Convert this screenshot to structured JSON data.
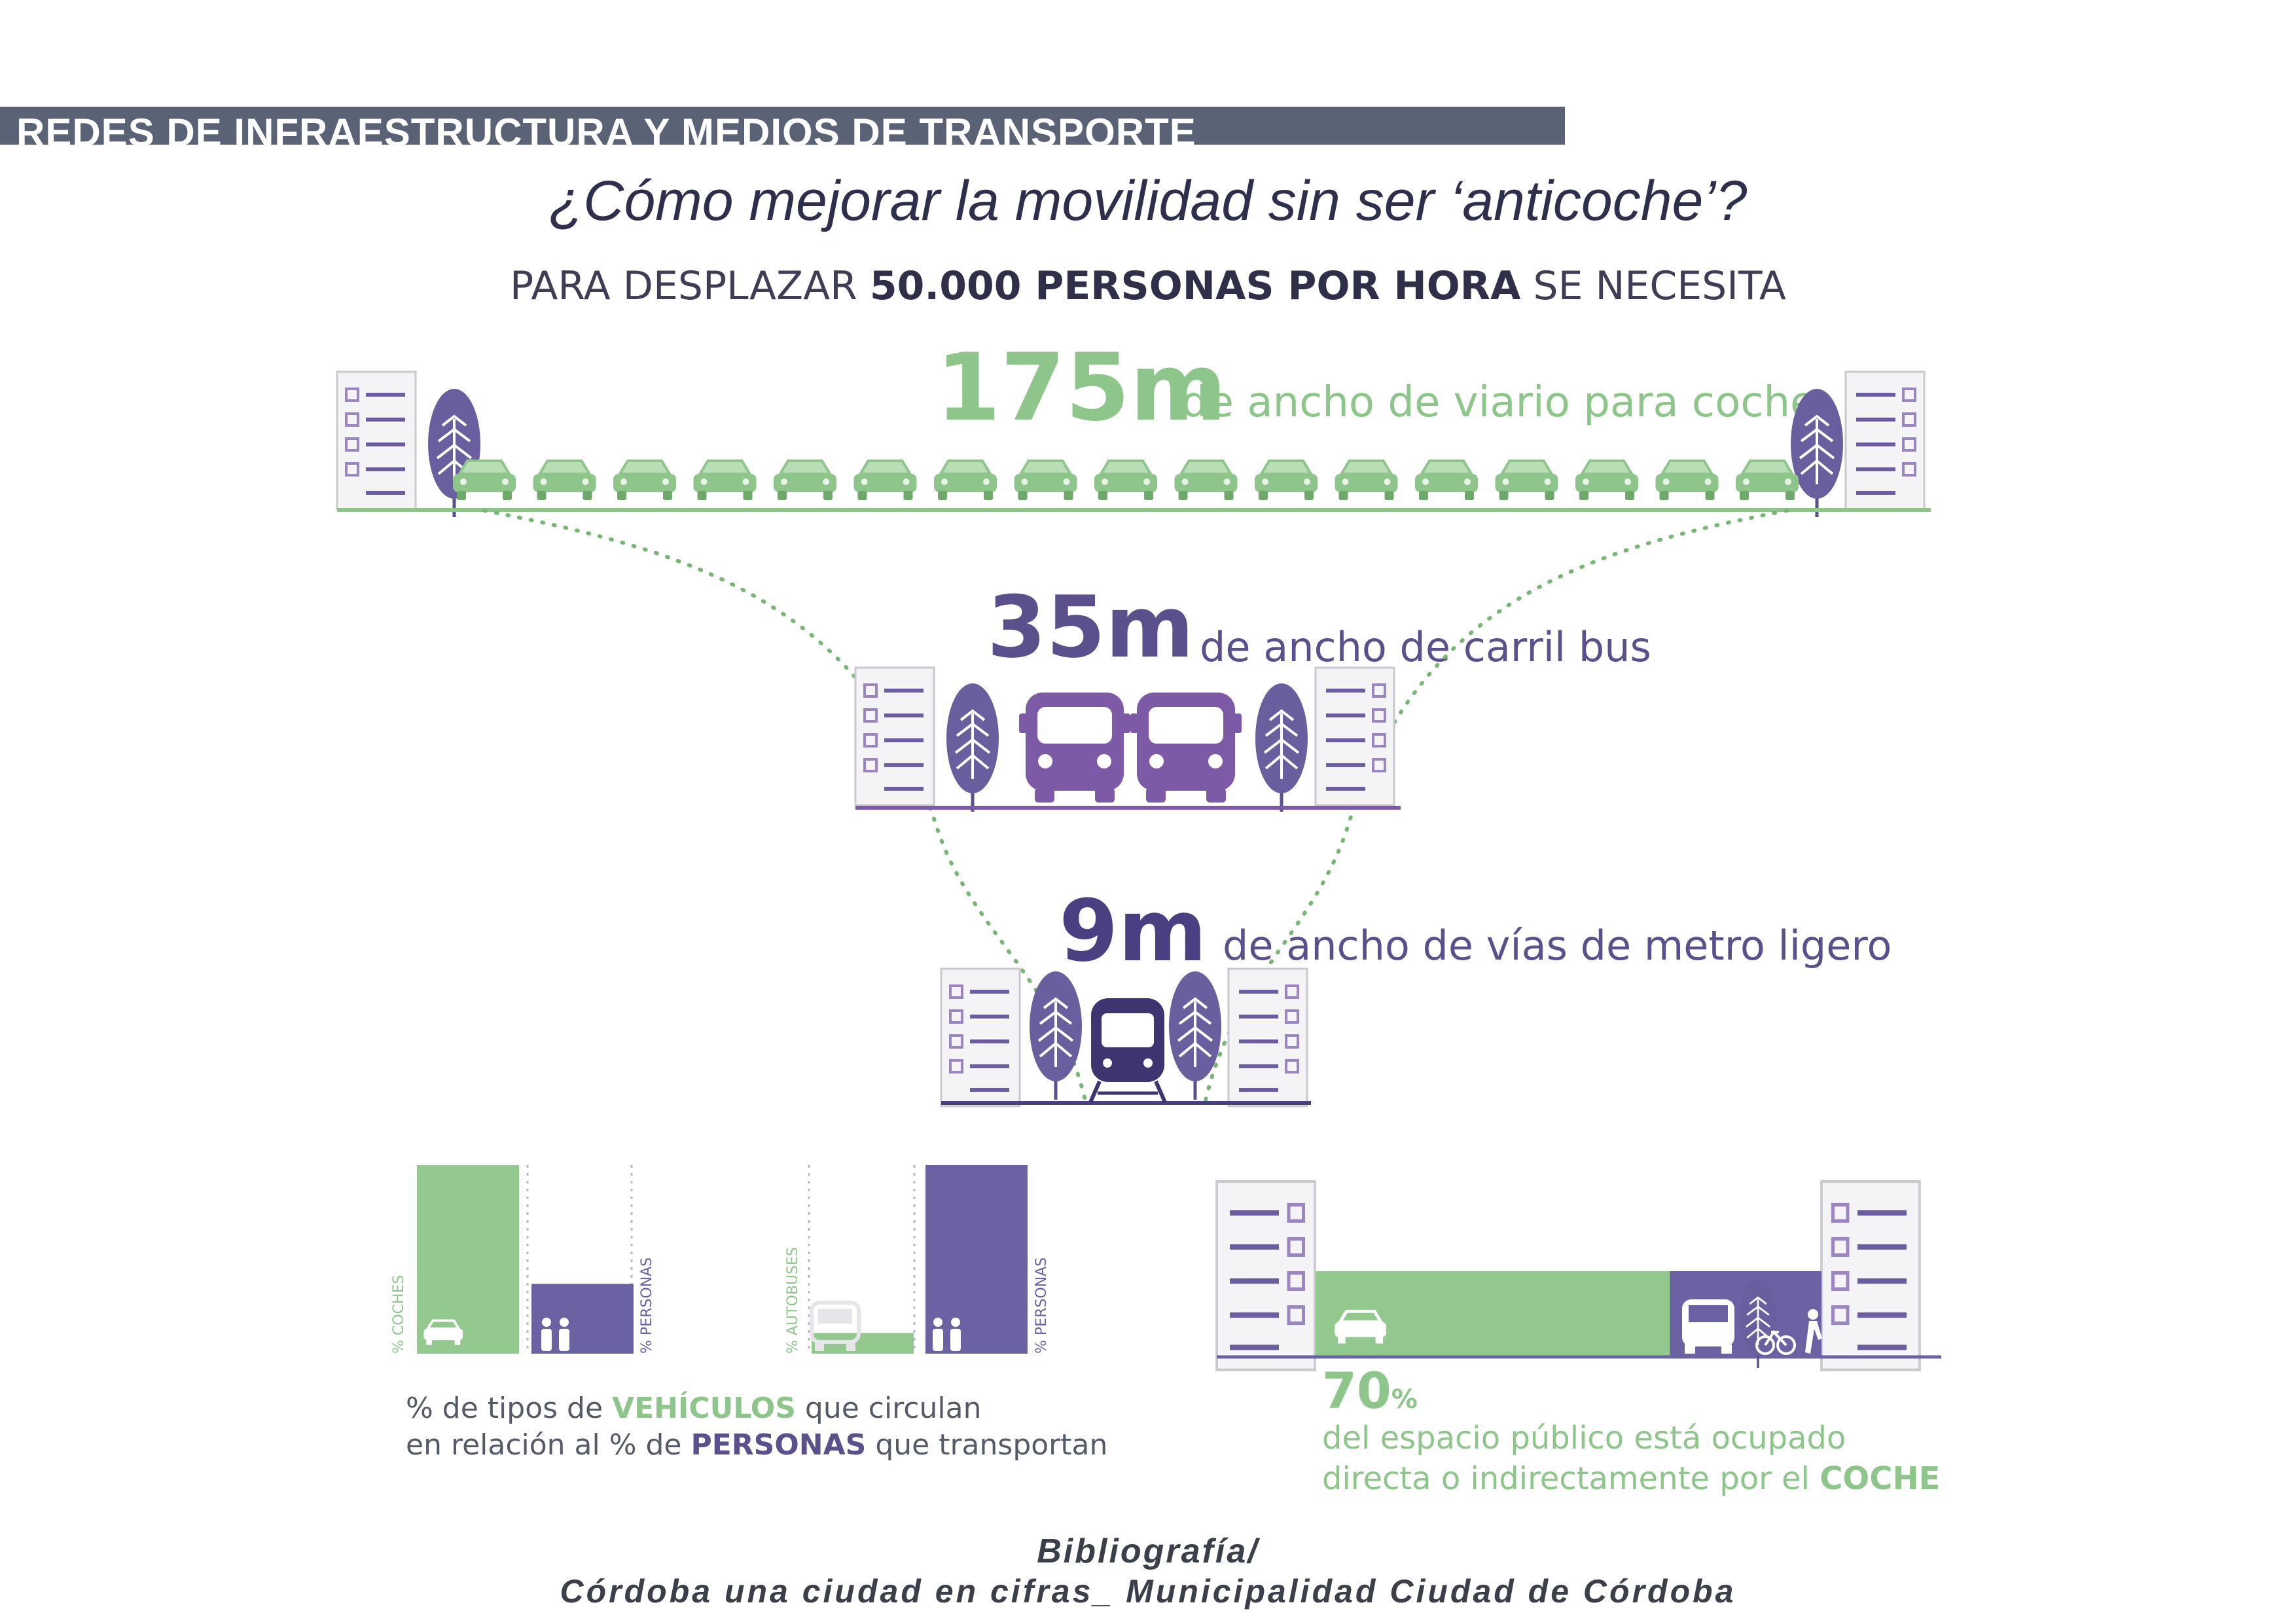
{
  "header": {
    "title": "REDES DE INFRAESTRUCTURA Y MEDIOS DE TRANSPORTE"
  },
  "question": "¿Cómo mejorar la movilidad sin ser ‘anticoche’?",
  "subtitle": {
    "pre": "PARA DESPLAZAR ",
    "bold": "50.000 PERSONAS POR HORA",
    "post": " SE NECESITA"
  },
  "sections": {
    "car": {
      "value": "175m",
      "label": "de ancho de viario para coche",
      "vehicle_count": 17
    },
    "bus": {
      "value": "35m",
      "label": "de ancho de carril bus",
      "vehicle_count": 2
    },
    "metro": {
      "value": "9m",
      "label": "de ancho de vías de metro ligero",
      "vehicle_count": 1
    }
  },
  "chart_data": [
    {
      "type": "bar",
      "categories": [
        "% COCHES",
        "% PERSONAS"
      ],
      "values": [
        100,
        37
      ],
      "xlabel": "",
      "ylabel": ""
    },
    {
      "type": "bar",
      "categories": [
        "% AUTOBUSES",
        "% PERSONAS"
      ],
      "values": [
        11,
        100
      ],
      "xlabel": "",
      "ylabel": ""
    }
  ],
  "chart_caption": {
    "line1": {
      "pre": "% de tipos de ",
      "bold": "VEHÍCULOS",
      "post": " que circulan"
    },
    "line2": {
      "pre": "en relación al % de ",
      "bold": "PERSONAS",
      "post": " que transportan"
    }
  },
  "space": {
    "value": "70",
    "unit": "%",
    "line1": "del espacio público está ocupado",
    "line2_pre": "directa o indirectamente por el ",
    "line2_bold": "COCHE",
    "car_share": 0.7
  },
  "colors": {
    "green": "#8dc58a",
    "purple": "#5b4f8c",
    "bar_purple": "#6a62a2",
    "header": "#5a6276"
  },
  "bibliography": {
    "label": "Bibliografía/",
    "source": "Córdoba una ciudad en cifras_ Municipalidad Ciudad de Córdoba"
  }
}
